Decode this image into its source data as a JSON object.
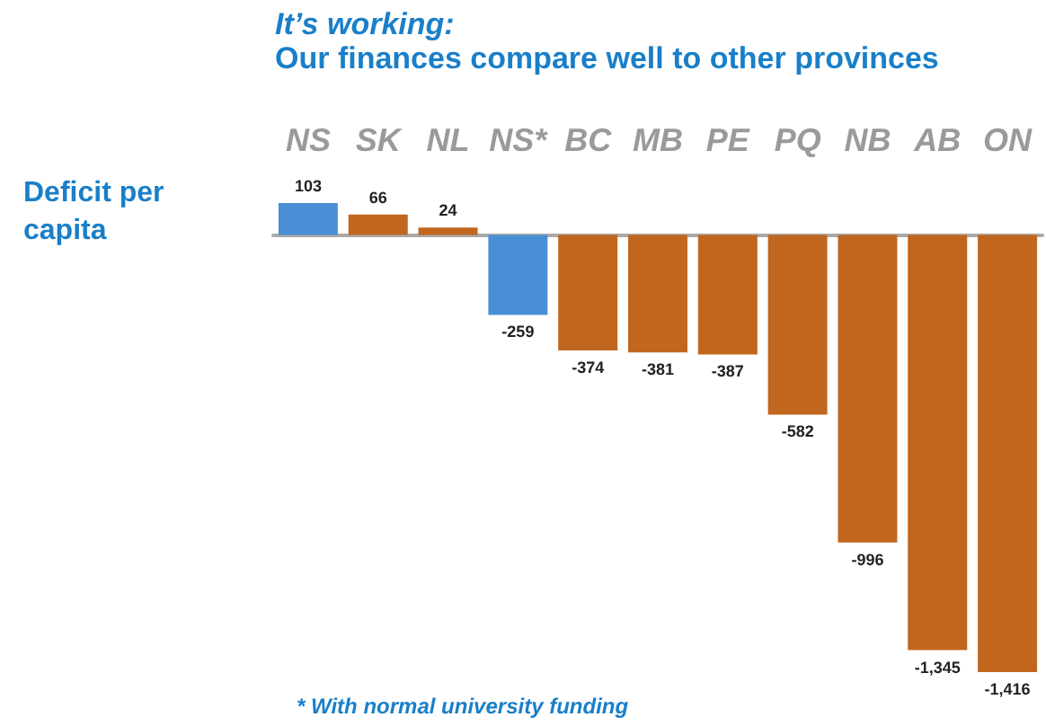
{
  "chart_data": {
    "type": "bar",
    "title": "It’s working:",
    "subtitle": "Our finances compare well to other provinces",
    "categories": [
      "NS",
      "SK",
      "NL",
      "NS*",
      "BC",
      "MB",
      "PE",
      "PQ",
      "NB",
      "AB",
      "ON"
    ],
    "values": [
      103,
      66,
      24,
      -259,
      -374,
      -381,
      -387,
      -582,
      -996,
      -1345,
      -1416
    ],
    "colors": [
      "#4a8fd6",
      "#c0661f",
      "#c0661f",
      "#4a8fd6",
      "#c0661f",
      "#c0661f",
      "#c0661f",
      "#c0661f",
      "#c0661f",
      "#c0661f",
      "#c0661f"
    ],
    "value_labels": [
      "103",
      "66",
      "24",
      "-259",
      "-374",
      "-381",
      "-387",
      "-582",
      "-996",
      "-1,345",
      "-1,416"
    ],
    "annotations": [
      "Deficit per capita",
      "* With normal university funding"
    ]
  }
}
